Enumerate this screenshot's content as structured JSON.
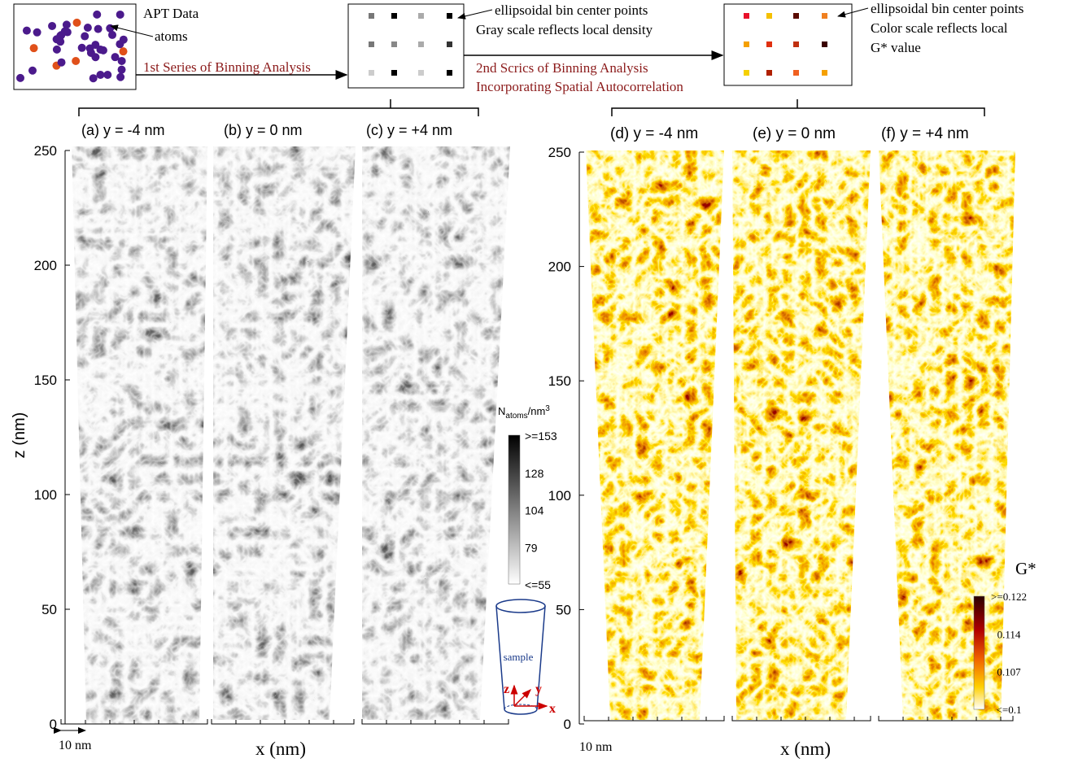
{
  "schematic": {
    "apt_label": "APT Data",
    "atoms_label": "atoms",
    "step1": "1st Series of Binning Analysis",
    "box2_note": [
      "ellipsoidal bin center points",
      "Gray scale reflects local density"
    ],
    "step2": [
      "2nd Scrics of Binning Analysis",
      "Incorporating Spatial Autocorrelation"
    ],
    "box3_note": [
      "ellipsoidal bin center points",
      "Color scale reflects local",
      "G* value"
    ]
  },
  "density_maps": {
    "panels": [
      "(a) y = -4 nm",
      "(b) y = 0 nm",
      "(c) y = +4 nm"
    ],
    "y_label": "z (nm)",
    "x_label": "x (nm)",
    "scale_bar": "10 nm",
    "zlim": [
      0,
      250
    ],
    "zticks": [
      0,
      50,
      100,
      150,
      200,
      250
    ],
    "colorbar": {
      "title": "N",
      "title_sub": "atoms",
      "title_unit": "/nm",
      "title_sup": "3",
      "labels": [
        ">=153",
        "128",
        "104",
        "79",
        "<=55"
      ]
    }
  },
  "gstar_maps": {
    "panels": [
      "(d) y = -4 nm",
      "(e) y = 0 nm",
      "(f) y = +4 nm"
    ],
    "x_label": "x (nm)",
    "scale_bar": "10 nm",
    "zlim": [
      0,
      250
    ],
    "zticks": [
      0,
      50,
      100,
      150,
      200,
      250
    ],
    "colorbar": {
      "title": "G*",
      "labels": [
        ">=0.122",
        "0.114",
        "0.107",
        "<=0.1"
      ]
    }
  },
  "sample_icon": {
    "label": "sample",
    "axes": [
      "z",
      "y",
      "x"
    ]
  }
}
